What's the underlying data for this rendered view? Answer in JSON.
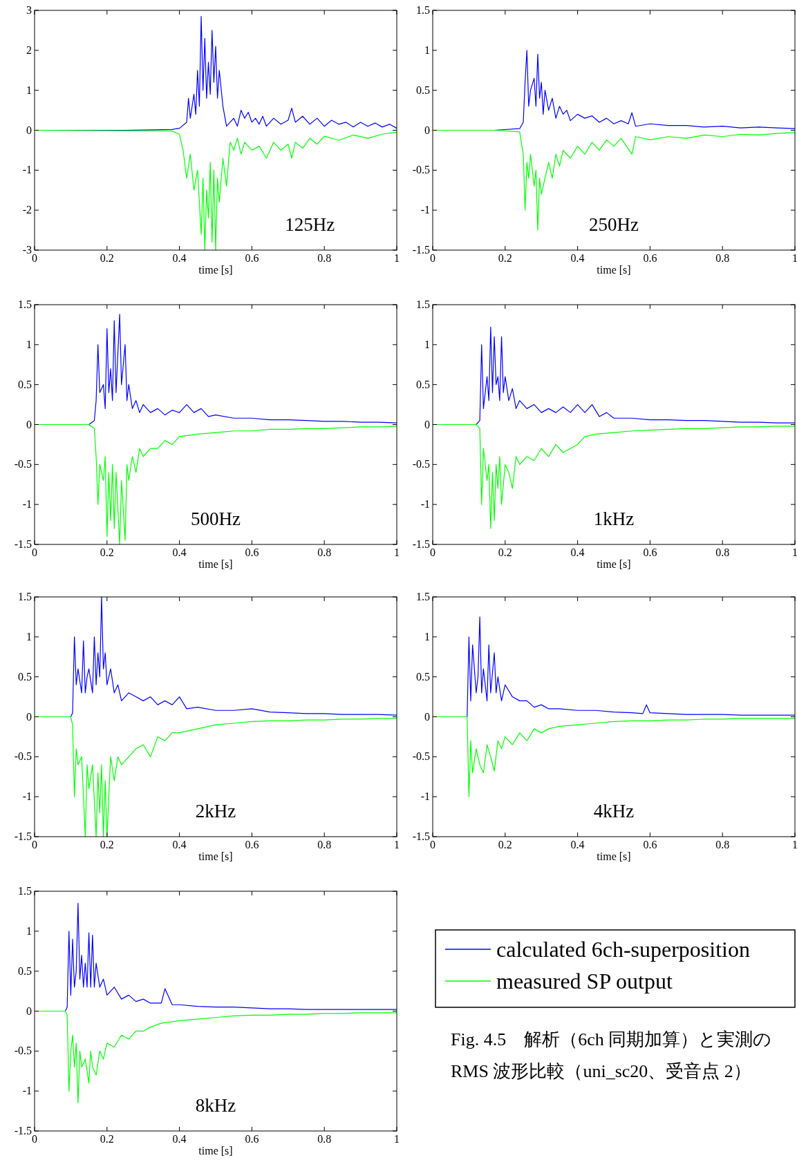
{
  "chart_data": [
    {
      "type": "line",
      "xlabel": "time [s]",
      "annotations": [
        "125Hz"
      ],
      "xlim": [
        0,
        1
      ],
      "ylim": [
        -3,
        3
      ],
      "xticks": [
        0,
        0.2,
        0.4,
        0.6,
        0.8,
        1
      ],
      "yticks": [
        -3,
        -2,
        -1,
        0,
        1,
        2,
        3
      ],
      "series": [
        {
          "color": "#0000ff",
          "x": [
            0,
            0.25,
            0.38,
            0.4,
            0.42,
            0.425,
            0.43,
            0.44,
            0.445,
            0.45,
            0.455,
            0.46,
            0.465,
            0.47,
            0.475,
            0.48,
            0.485,
            0.49,
            0.495,
            0.5,
            0.505,
            0.51,
            0.52,
            0.53,
            0.55,
            0.56,
            0.57,
            0.58,
            0.59,
            0.6,
            0.61,
            0.62,
            0.63,
            0.64,
            0.66,
            0.68,
            0.7,
            0.71,
            0.72,
            0.74,
            0.76,
            0.78,
            0.8,
            0.82,
            0.84,
            0.86,
            0.88,
            0.9,
            0.92,
            0.94,
            0.96,
            0.98,
            1
          ],
          "values": [
            0,
            0,
            0.02,
            0.05,
            0.2,
            0.8,
            0.3,
            0.9,
            0.4,
            1.5,
            0.6,
            2.85,
            1,
            2.3,
            0.8,
            1.7,
            0.9,
            2.5,
            1.2,
            2.1,
            0.8,
            1.5,
            0.6,
            0.1,
            0.3,
            0.1,
            0.5,
            0.3,
            0.45,
            0.2,
            0.3,
            0.15,
            0.35,
            0.1,
            0.3,
            0.15,
            0.25,
            0.55,
            0.2,
            0.35,
            0.15,
            0.3,
            0.1,
            0.25,
            0.15,
            0.2,
            0.08,
            0.2,
            0.1,
            0.18,
            0.08,
            0.15,
            0.05
          ]
        },
        {
          "color": "#00ff00",
          "x": [
            0,
            0.38,
            0.4,
            0.41,
            0.42,
            0.43,
            0.44,
            0.45,
            0.46,
            0.465,
            0.47,
            0.475,
            0.48,
            0.485,
            0.49,
            0.495,
            0.5,
            0.505,
            0.51,
            0.52,
            0.53,
            0.54,
            0.55,
            0.56,
            0.57,
            0.58,
            0.6,
            0.62,
            0.64,
            0.66,
            0.68,
            0.7,
            0.71,
            0.72,
            0.74,
            0.76,
            0.78,
            0.8,
            0.84,
            0.88,
            0.92,
            0.96,
            1
          ],
          "values": [
            0,
            -0.02,
            -0.1,
            -0.5,
            -1.2,
            -0.6,
            -1.5,
            -1,
            -2.6,
            -1.2,
            -3,
            -1.5,
            -2.2,
            -0.8,
            -2.8,
            -1,
            -3,
            -1.2,
            -1.8,
            -0.7,
            -1.4,
            -0.3,
            -0.5,
            -0.2,
            -0.6,
            -0.3,
            -0.5,
            -0.4,
            -0.7,
            -0.3,
            -0.5,
            -0.35,
            -0.7,
            -0.3,
            -0.45,
            -0.2,
            -0.35,
            -0.15,
            -0.25,
            -0.12,
            -0.2,
            -0.1,
            -0.05
          ]
        }
      ]
    },
    {
      "type": "line",
      "xlabel": "time [s]",
      "annotations": [
        "250Hz"
      ],
      "xlim": [
        0,
        1
      ],
      "ylim": [
        -1.5,
        1.5
      ],
      "xticks": [
        0,
        0.2,
        0.4,
        0.6,
        0.8,
        1
      ],
      "yticks": [
        -1.5,
        -1,
        -0.5,
        0,
        0.5,
        1,
        1.5
      ],
      "series": [
        {
          "color": "#0000ff",
          "x": [
            0,
            0.17,
            0.24,
            0.25,
            0.255,
            0.26,
            0.265,
            0.27,
            0.28,
            0.285,
            0.29,
            0.295,
            0.3,
            0.305,
            0.31,
            0.32,
            0.33,
            0.34,
            0.35,
            0.36,
            0.37,
            0.38,
            0.4,
            0.42,
            0.44,
            0.46,
            0.48,
            0.5,
            0.52,
            0.54,
            0.55,
            0.56,
            0.6,
            0.65,
            0.7,
            0.75,
            0.8,
            0.85,
            0.9,
            0.95,
            1
          ],
          "values": [
            0,
            0,
            0.02,
            0.1,
            0.6,
            1,
            0.3,
            0.5,
            0.65,
            0.3,
            0.95,
            0.4,
            0.6,
            0.2,
            0.5,
            0.25,
            0.4,
            0.15,
            0.3,
            0.2,
            0.25,
            0.12,
            0.2,
            0.15,
            0.18,
            0.1,
            0.15,
            0.08,
            0.12,
            0.08,
            0.22,
            0.05,
            0.08,
            0.06,
            0.06,
            0.04,
            0.05,
            0.03,
            0.04,
            0.03,
            0.02
          ]
        },
        {
          "color": "#00ff00",
          "x": [
            0,
            0.17,
            0.24,
            0.25,
            0.255,
            0.26,
            0.265,
            0.27,
            0.28,
            0.285,
            0.29,
            0.295,
            0.3,
            0.31,
            0.32,
            0.33,
            0.34,
            0.35,
            0.36,
            0.38,
            0.4,
            0.42,
            0.44,
            0.46,
            0.48,
            0.5,
            0.52,
            0.55,
            0.56,
            0.6,
            0.65,
            0.7,
            0.75,
            0.8,
            0.85,
            0.9,
            0.95,
            1
          ],
          "values": [
            0,
            0,
            -0.02,
            -0.3,
            -1,
            -0.4,
            -0.6,
            -0.3,
            -0.7,
            -0.5,
            -1.25,
            -0.6,
            -0.8,
            -0.6,
            -0.4,
            -0.6,
            -0.3,
            -0.45,
            -0.25,
            -0.35,
            -0.2,
            -0.3,
            -0.15,
            -0.25,
            -0.12,
            -0.2,
            -0.1,
            -0.3,
            -0.08,
            -0.12,
            -0.08,
            -0.1,
            -0.06,
            -0.08,
            -0.05,
            -0.06,
            -0.04,
            -0.03
          ]
        }
      ]
    },
    {
      "type": "line",
      "xlabel": "time [s]",
      "annotations": [
        "500Hz"
      ],
      "xlim": [
        0,
        1
      ],
      "ylim": [
        -1.5,
        1.5
      ],
      "xticks": [
        0,
        0.2,
        0.4,
        0.6,
        0.8,
        1
      ],
      "yticks": [
        -1.5,
        -1,
        -0.5,
        0,
        0.5,
        1,
        1.5
      ],
      "series": [
        {
          "color": "#0000ff",
          "x": [
            0,
            0.15,
            0.165,
            0.17,
            0.175,
            0.18,
            0.19,
            0.195,
            0.2,
            0.205,
            0.21,
            0.215,
            0.22,
            0.225,
            0.235,
            0.24,
            0.25,
            0.255,
            0.26,
            0.27,
            0.28,
            0.29,
            0.3,
            0.32,
            0.34,
            0.36,
            0.38,
            0.4,
            0.42,
            0.44,
            0.46,
            0.48,
            0.5,
            0.55,
            0.6,
            0.65,
            0.7,
            0.75,
            0.8,
            0.85,
            0.9,
            0.95,
            1
          ],
          "values": [
            0,
            0,
            0.05,
            0.3,
            1,
            0.4,
            0.5,
            0.2,
            1.2,
            0.4,
            0.7,
            0.3,
            1.3,
            0.4,
            1.38,
            0.5,
            1,
            0.3,
            0.5,
            0.2,
            0.3,
            0.15,
            0.25,
            0.15,
            0.2,
            0.12,
            0.18,
            0.15,
            0.25,
            0.15,
            0.2,
            0.1,
            0.12,
            0.08,
            0.08,
            0.06,
            0.06,
            0.05,
            0.04,
            0.04,
            0.03,
            0.03,
            0.02
          ]
        },
        {
          "color": "#00ff00",
          "x": [
            0,
            0.15,
            0.165,
            0.17,
            0.175,
            0.18,
            0.19,
            0.195,
            0.2,
            0.205,
            0.21,
            0.215,
            0.22,
            0.225,
            0.235,
            0.24,
            0.25,
            0.255,
            0.26,
            0.27,
            0.28,
            0.29,
            0.3,
            0.32,
            0.34,
            0.36,
            0.38,
            0.4,
            0.45,
            0.5,
            0.55,
            0.6,
            0.65,
            0.7,
            0.75,
            0.8,
            0.85,
            0.9,
            0.95,
            1
          ],
          "values": [
            0,
            0,
            -0.05,
            -0.4,
            -1,
            -0.5,
            -0.7,
            -0.4,
            -1.4,
            -0.6,
            -1.2,
            -0.5,
            -1.3,
            -0.6,
            -1.5,
            -0.7,
            -1.45,
            -0.5,
            -0.7,
            -0.4,
            -0.6,
            -0.3,
            -0.4,
            -0.3,
            -0.3,
            -0.2,
            -0.25,
            -0.15,
            -0.12,
            -0.1,
            -0.08,
            -0.08,
            -0.06,
            -0.06,
            -0.05,
            -0.05,
            -0.04,
            -0.03,
            -0.03,
            -0.02
          ]
        }
      ]
    },
    {
      "type": "line",
      "xlabel": "time [s]",
      "annotations": [
        "1kHz"
      ],
      "xlim": [
        0,
        1
      ],
      "ylim": [
        -1.5,
        1.5
      ],
      "xticks": [
        0,
        0.2,
        0.4,
        0.6,
        0.8,
        1
      ],
      "yticks": [
        -1.5,
        -1,
        -0.5,
        0,
        0.5,
        1,
        1.5
      ],
      "series": [
        {
          "color": "#0000ff",
          "x": [
            0,
            0.12,
            0.13,
            0.135,
            0.14,
            0.15,
            0.155,
            0.16,
            0.165,
            0.17,
            0.175,
            0.18,
            0.185,
            0.19,
            0.195,
            0.2,
            0.21,
            0.22,
            0.23,
            0.24,
            0.26,
            0.28,
            0.3,
            0.32,
            0.34,
            0.36,
            0.38,
            0.4,
            0.42,
            0.44,
            0.46,
            0.48,
            0.5,
            0.55,
            0.6,
            0.65,
            0.7,
            0.75,
            0.8,
            0.85,
            0.9,
            0.95,
            1
          ],
          "values": [
            0,
            0,
            0.05,
            1,
            0.2,
            0.6,
            0.3,
            1.22,
            0.4,
            1.1,
            0.5,
            0.6,
            0.3,
            1.1,
            0.4,
            0.6,
            0.3,
            0.45,
            0.2,
            0.3,
            0.2,
            0.25,
            0.15,
            0.2,
            0.15,
            0.22,
            0.15,
            0.25,
            0.15,
            0.25,
            0.1,
            0.15,
            0.08,
            0.08,
            0.06,
            0.06,
            0.05,
            0.05,
            0.04,
            0.03,
            0.03,
            0.02,
            0.02
          ]
        },
        {
          "color": "#00ff00",
          "x": [
            0,
            0.12,
            0.13,
            0.135,
            0.14,
            0.15,
            0.155,
            0.16,
            0.165,
            0.17,
            0.175,
            0.18,
            0.185,
            0.19,
            0.2,
            0.21,
            0.22,
            0.23,
            0.24,
            0.26,
            0.28,
            0.3,
            0.32,
            0.34,
            0.36,
            0.38,
            0.4,
            0.42,
            0.45,
            0.5,
            0.55,
            0.6,
            0.65,
            0.7,
            0.75,
            0.8,
            0.85,
            0.9,
            0.95,
            1
          ],
          "values": [
            0,
            0,
            -0.05,
            -1,
            -0.3,
            -0.7,
            -0.5,
            -1.3,
            -0.6,
            -1.2,
            -0.5,
            -0.8,
            -0.4,
            -1,
            -0.5,
            -0.6,
            -0.8,
            -0.4,
            -0.5,
            -0.4,
            -0.45,
            -0.3,
            -0.4,
            -0.25,
            -0.35,
            -0.3,
            -0.25,
            -0.15,
            -0.12,
            -0.1,
            -0.08,
            -0.07,
            -0.06,
            -0.05,
            -0.05,
            -0.04,
            -0.03,
            -0.03,
            -0.02,
            -0.02
          ]
        }
      ]
    },
    {
      "type": "line",
      "xlabel": "time [s]",
      "annotations": [
        "2kHz"
      ],
      "xlim": [
        0,
        1
      ],
      "ylim": [
        -1.5,
        1.5
      ],
      "xticks": [
        0,
        0.2,
        0.4,
        0.6,
        0.8,
        1
      ],
      "yticks": [
        -1.5,
        -1,
        -0.5,
        0,
        0.5,
        1,
        1.5
      ],
      "series": [
        {
          "color": "#0000ff",
          "x": [
            0,
            0.1,
            0.105,
            0.11,
            0.115,
            0.12,
            0.13,
            0.135,
            0.14,
            0.145,
            0.15,
            0.16,
            0.165,
            0.17,
            0.175,
            0.18,
            0.185,
            0.19,
            0.195,
            0.2,
            0.21,
            0.22,
            0.23,
            0.24,
            0.26,
            0.28,
            0.3,
            0.32,
            0.34,
            0.36,
            0.38,
            0.4,
            0.42,
            0.45,
            0.5,
            0.55,
            0.6,
            0.65,
            0.7,
            0.75,
            0.8,
            0.85,
            0.9,
            0.95,
            1
          ],
          "values": [
            0,
            0,
            0.05,
            1,
            0.4,
            0.6,
            0.3,
            0.95,
            0.3,
            0.5,
            0.6,
            0.3,
            1,
            0.4,
            0.8,
            0.5,
            1.5,
            0.6,
            0.8,
            0.4,
            0.6,
            0.3,
            0.4,
            0.2,
            0.3,
            0.25,
            0.2,
            0.25,
            0.15,
            0.2,
            0.15,
            0.25,
            0.1,
            0.12,
            0.08,
            0.08,
            0.1,
            0.06,
            0.05,
            0.04,
            0.04,
            0.03,
            0.03,
            0.03,
            0.02
          ]
        },
        {
          "color": "#00ff00",
          "x": [
            0,
            0.1,
            0.105,
            0.11,
            0.115,
            0.12,
            0.13,
            0.14,
            0.145,
            0.15,
            0.16,
            0.17,
            0.175,
            0.18,
            0.185,
            0.19,
            0.195,
            0.2,
            0.21,
            0.22,
            0.23,
            0.24,
            0.26,
            0.28,
            0.3,
            0.32,
            0.34,
            0.36,
            0.38,
            0.4,
            0.45,
            0.5,
            0.55,
            0.6,
            0.65,
            0.7,
            0.75,
            0.8,
            0.85,
            0.9,
            0.95,
            1
          ],
          "values": [
            0,
            0,
            -0.1,
            -1,
            -0.4,
            -0.6,
            -0.5,
            -1.5,
            -0.6,
            -0.9,
            -0.6,
            -1.5,
            -0.7,
            -1.2,
            -0.6,
            -1.5,
            -0.8,
            -1.5,
            -0.5,
            -0.8,
            -0.5,
            -0.6,
            -0.5,
            -0.4,
            -0.35,
            -0.5,
            -0.25,
            -0.3,
            -0.2,
            -0.2,
            -0.15,
            -0.1,
            -0.08,
            -0.06,
            -0.05,
            -0.05,
            -0.04,
            -0.04,
            -0.03,
            -0.03,
            -0.02,
            -0.02
          ]
        }
      ]
    },
    {
      "type": "line",
      "xlabel": "time [s]",
      "annotations": [
        "4kHz"
      ],
      "xlim": [
        0,
        1
      ],
      "ylim": [
        -1.5,
        1.5
      ],
      "xticks": [
        0,
        0.2,
        0.4,
        0.6,
        0.8,
        1
      ],
      "yticks": [
        -1.5,
        -1,
        -0.5,
        0,
        0.5,
        1,
        1.5
      ],
      "series": [
        {
          "color": "#0000ff",
          "x": [
            0,
            0.095,
            0.1,
            0.105,
            0.11,
            0.12,
            0.125,
            0.13,
            0.135,
            0.14,
            0.15,
            0.155,
            0.16,
            0.17,
            0.175,
            0.18,
            0.19,
            0.2,
            0.22,
            0.24,
            0.26,
            0.28,
            0.3,
            0.32,
            0.35,
            0.4,
            0.45,
            0.5,
            0.55,
            0.58,
            0.59,
            0.6,
            0.65,
            0.7,
            0.75,
            0.8,
            0.85,
            0.9,
            0.95,
            1
          ],
          "values": [
            0,
            0,
            1,
            0.2,
            0.9,
            0.3,
            0.5,
            1.25,
            0.3,
            0.6,
            0.2,
            0.9,
            0.3,
            0.8,
            0.3,
            0.5,
            0.2,
            0.4,
            0.25,
            0.2,
            0.2,
            0.12,
            0.15,
            0.1,
            0.1,
            0.08,
            0.08,
            0.06,
            0.05,
            0.04,
            0.15,
            0.05,
            0.04,
            0.03,
            0.03,
            0.03,
            0.02,
            0.02,
            0.02,
            0.02
          ]
        },
        {
          "color": "#00ff00",
          "x": [
            0,
            0.095,
            0.1,
            0.105,
            0.11,
            0.12,
            0.13,
            0.14,
            0.15,
            0.16,
            0.17,
            0.18,
            0.19,
            0.2,
            0.22,
            0.24,
            0.26,
            0.28,
            0.3,
            0.32,
            0.35,
            0.4,
            0.45,
            0.5,
            0.55,
            0.6,
            0.65,
            0.7,
            0.75,
            0.8,
            0.85,
            0.9,
            0.95,
            1
          ],
          "values": [
            0,
            0,
            -1,
            -0.3,
            -0.7,
            -0.4,
            -0.6,
            -0.7,
            -0.35,
            -0.5,
            -0.68,
            -0.3,
            -0.4,
            -0.25,
            -0.35,
            -0.2,
            -0.3,
            -0.15,
            -0.2,
            -0.15,
            -0.12,
            -0.1,
            -0.08,
            -0.06,
            -0.05,
            -0.05,
            -0.04,
            -0.04,
            -0.03,
            -0.03,
            -0.02,
            -0.02,
            -0.02,
            -0.02
          ]
        }
      ]
    },
    {
      "type": "line",
      "xlabel": "time [s]",
      "annotations": [
        "8kHz"
      ],
      "xlim": [
        0,
        1
      ],
      "ylim": [
        -1.5,
        1.5
      ],
      "xticks": [
        0,
        0.2,
        0.4,
        0.6,
        0.8,
        1
      ],
      "yticks": [
        -1.5,
        -1,
        -0.5,
        0,
        0.5,
        1,
        1.5
      ],
      "legend": "right",
      "series": [
        {
          "name": "calculated 6ch-superposition",
          "color": "#0000ff",
          "x": [
            0,
            0.085,
            0.09,
            0.095,
            0.1,
            0.105,
            0.11,
            0.115,
            0.12,
            0.125,
            0.13,
            0.135,
            0.14,
            0.145,
            0.15,
            0.155,
            0.16,
            0.165,
            0.17,
            0.18,
            0.19,
            0.2,
            0.22,
            0.24,
            0.26,
            0.28,
            0.3,
            0.32,
            0.35,
            0.36,
            0.38,
            0.4,
            0.45,
            0.5,
            0.55,
            0.6,
            0.65,
            0.7,
            0.75,
            0.8,
            0.85,
            0.9,
            0.95,
            1
          ],
          "values": [
            0,
            0,
            0.05,
            1,
            0.2,
            0.9,
            0.3,
            0.5,
            1.35,
            0.4,
            0.7,
            0.3,
            0.6,
            0.3,
            0.98,
            0.3,
            0.95,
            0.3,
            0.6,
            0.3,
            0.4,
            0.2,
            0.3,
            0.15,
            0.2,
            0.12,
            0.15,
            0.1,
            0.1,
            0.28,
            0.08,
            0.08,
            0.06,
            0.05,
            0.05,
            0.04,
            0.03,
            0.03,
            0.02,
            0.02,
            0.02,
            0.02,
            0.02,
            0.02
          ]
        },
        {
          "name": "measured SP output",
          "color": "#00ff00",
          "x": [
            0,
            0.085,
            0.09,
            0.095,
            0.1,
            0.105,
            0.11,
            0.115,
            0.12,
            0.125,
            0.13,
            0.14,
            0.15,
            0.155,
            0.16,
            0.17,
            0.18,
            0.19,
            0.2,
            0.22,
            0.24,
            0.26,
            0.28,
            0.3,
            0.32,
            0.35,
            0.4,
            0.45,
            0.5,
            0.55,
            0.6,
            0.65,
            0.7,
            0.75,
            0.8,
            0.85,
            0.9,
            0.95,
            1
          ],
          "values": [
            0,
            0,
            -0.05,
            -1,
            -0.5,
            -0.3,
            -0.7,
            -0.4,
            -1.15,
            -0.5,
            -0.7,
            -0.6,
            -0.9,
            -0.5,
            -0.7,
            -0.8,
            -0.5,
            -0.6,
            -0.4,
            -0.45,
            -0.3,
            -0.35,
            -0.25,
            -0.25,
            -0.2,
            -0.15,
            -0.12,
            -0.1,
            -0.08,
            -0.06,
            -0.05,
            -0.05,
            -0.04,
            -0.04,
            -0.03,
            -0.03,
            -0.02,
            -0.02,
            -0.02
          ]
        }
      ]
    },
    {
      "type": "other",
      "annotations": [
        "Fig. 4.5　解析（6ch 同期加算）と実測の RMS 波形比較（uni_sc20、受音点 2）"
      ]
    }
  ]
}
